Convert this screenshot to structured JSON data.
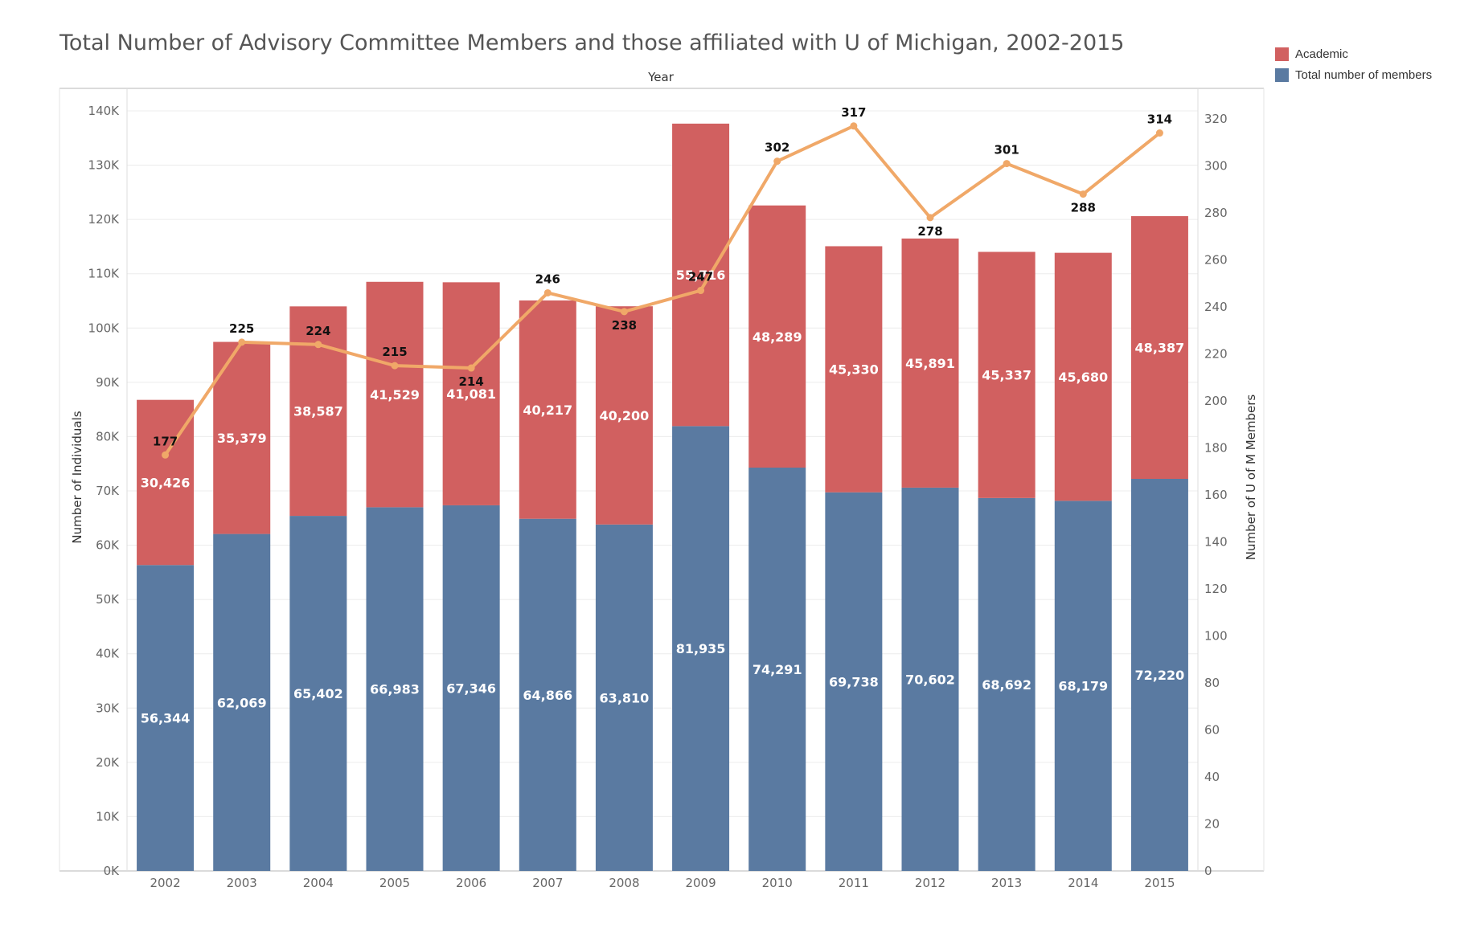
{
  "chart_data": {
    "type": "bar",
    "title": "Total Number of Advisory Committee Members and those affiliated with U of Michigan, 2002-2015",
    "xlabel": "Year",
    "ylabel": "Number of Individuals",
    "y2label": "Number of U of M Members",
    "categories": [
      "2002",
      "2003",
      "2004",
      "2005",
      "2006",
      "2007",
      "2008",
      "2009",
      "2010",
      "2011",
      "2012",
      "2013",
      "2014",
      "2015"
    ],
    "ylim": [
      0,
      140000
    ],
    "y2lim": [
      0,
      320
    ],
    "yticks": [
      "0K",
      "10K",
      "20K",
      "30K",
      "40K",
      "50K",
      "60K",
      "70K",
      "80K",
      "90K",
      "100K",
      "110K",
      "120K",
      "130K",
      "140K"
    ],
    "y2ticks": [
      "0",
      "20",
      "40",
      "60",
      "80",
      "100",
      "120",
      "140",
      "160",
      "180",
      "200",
      "220",
      "240",
      "260",
      "280",
      "300",
      "320"
    ],
    "stacked": true,
    "grid": true,
    "legend_position": "top-right",
    "series": [
      {
        "name": "Total number of members",
        "color": "#5a7aa1",
        "axis": "left",
        "values": [
          56344,
          62069,
          65402,
          66983,
          67346,
          64866,
          63810,
          81935,
          74291,
          69738,
          70602,
          68692,
          68179,
          72220
        ],
        "labels": [
          "56,344",
          "62,069",
          "65,402",
          "66,983",
          "67,346",
          "64,866",
          "63,810",
          "81,935",
          "74,291",
          "69,738",
          "70,602",
          "68,692",
          "68,179",
          "72,220"
        ]
      },
      {
        "name": "Academic",
        "color": "#d16060",
        "axis": "left",
        "values": [
          30426,
          35379,
          38587,
          41529,
          41081,
          40217,
          40200,
          55716,
          48289,
          45330,
          45891,
          45337,
          45680,
          48387
        ],
        "labels": [
          "30,426",
          "35,379",
          "38,587",
          "41,529",
          "41,081",
          "40,217",
          "40,200",
          "55,716",
          "48,289",
          "45,330",
          "45,891",
          "45,337",
          "45,680",
          "48,387"
        ]
      },
      {
        "color": "#f0a868",
        "type": "line",
        "axis": "right",
        "values": [
          177,
          225,
          224,
          215,
          214,
          246,
          238,
          247,
          302,
          317,
          278,
          301,
          288,
          314
        ],
        "labels": [
          "177",
          "225",
          "224",
          "215",
          "214",
          "246",
          "238",
          "247",
          "302",
          "317",
          "278",
          "301",
          "288",
          "314"
        ]
      }
    ]
  },
  "legend": {
    "items": [
      {
        "label": "Academic",
        "color": "#d16060"
      },
      {
        "label": "Total number of members",
        "color": "#5a7aa1"
      }
    ]
  }
}
